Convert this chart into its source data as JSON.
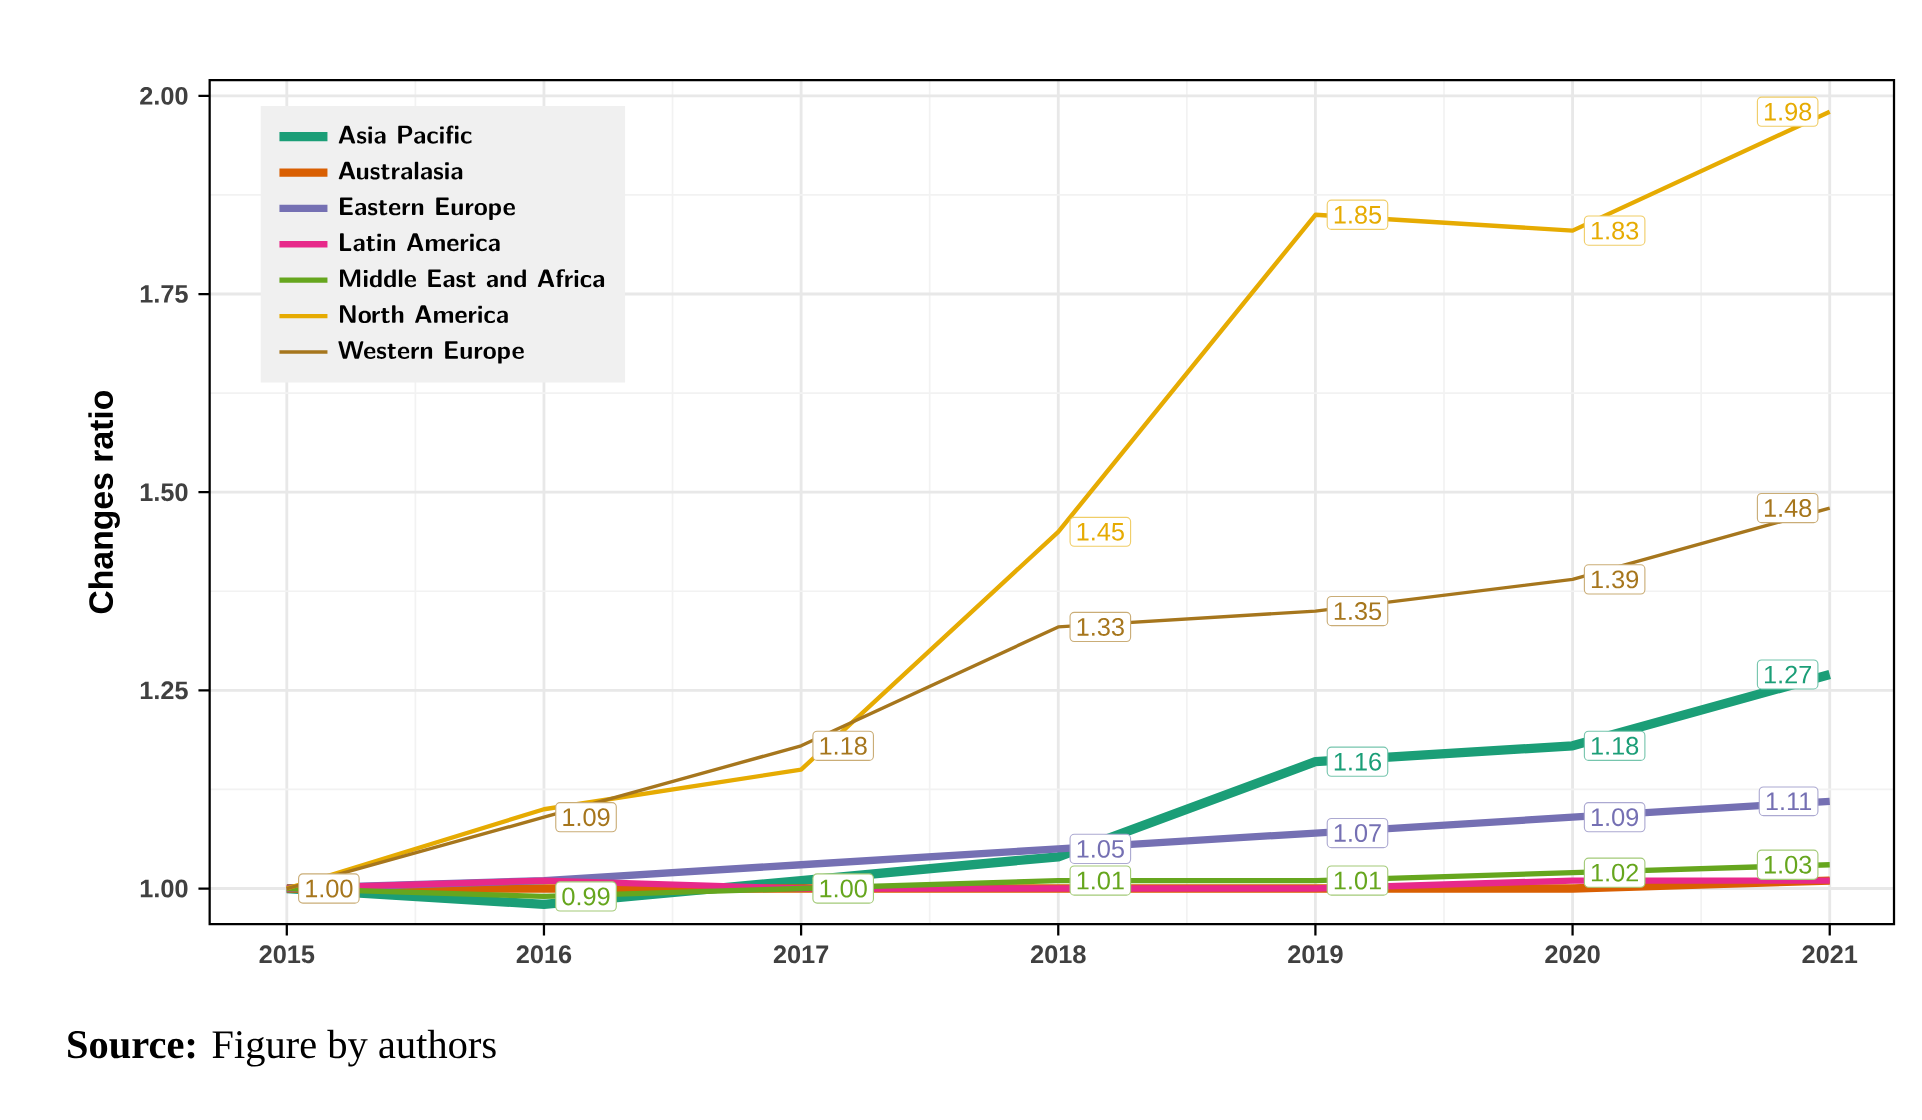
{
  "chart_data": {
    "type": "line",
    "ylabel": "Changes ratio",
    "x": [
      2015,
      2016,
      2017,
      2018,
      2019,
      2020,
      2021
    ],
    "xlim": [
      2014.7,
      2021.25
    ],
    "ylim": [
      0.955,
      2.02
    ],
    "xticks": [
      2015,
      2016,
      2017,
      2018,
      2019,
      2020,
      2021
    ],
    "yticks": [
      {
        "value": 1,
        "label": "1.00"
      },
      {
        "value": 1.25,
        "label": "1.25"
      },
      {
        "value": 1.5,
        "label": "1.50"
      },
      {
        "value": 1.75,
        "label": "1.75"
      },
      {
        "value": 2,
        "label": "2.00"
      }
    ],
    "grid": true,
    "legend": "top left",
    "marker": "none",
    "line_style": "solid",
    "series": [
      {
        "name": "Asia Pacific",
        "color": "#1b9e77",
        "values": [
          1.0,
          0.98,
          1.01,
          1.04,
          1.16,
          1.18,
          1.27
        ],
        "value_labels": [
          null,
          null,
          null,
          null,
          "1.16",
          "1.18",
          "1.27"
        ]
      },
      {
        "name": "Australasia",
        "color": "#d95f02",
        "values": [
          1.0,
          1.0,
          1.0,
          1.0,
          1.0,
          1.0,
          1.01
        ]
      },
      {
        "name": "Eastern Europe",
        "color": "#7570b3",
        "values": [
          1.0,
          1.01,
          1.03,
          1.05,
          1.07,
          1.09,
          1.11
        ],
        "value_labels": [
          null,
          null,
          null,
          "1.05",
          "1.07",
          "1.09",
          "1.11"
        ]
      },
      {
        "name": "Latin America",
        "color": "#e7298a",
        "values": [
          1.0,
          1.01,
          1.0,
          1.0,
          1.0,
          1.01,
          1.01
        ]
      },
      {
        "name": "Middle East and Africa",
        "color": "#66a61e",
        "values": [
          1.0,
          0.99,
          1.0,
          1.01,
          1.01,
          1.02,
          1.03
        ],
        "value_labels": [
          null,
          "0.99",
          "1.00",
          "1.01",
          "1.01",
          "1.02",
          "1.03"
        ]
      },
      {
        "name": "North America",
        "color": "#e6ab02",
        "values": [
          1.0,
          1.1,
          1.15,
          1.45,
          1.85,
          1.83,
          1.98
        ],
        "value_labels": [
          null,
          null,
          null,
          "1.45",
          "1.85",
          "1.83",
          "1.98"
        ]
      },
      {
        "name": "Western Europe",
        "color": "#a6761d",
        "values": [
          1.0,
          1.09,
          1.18,
          1.33,
          1.35,
          1.39,
          1.48
        ],
        "value_labels": [
          "1.00",
          "1.09",
          "1.18",
          "1.33",
          "1.35",
          "1.39",
          "1.48"
        ]
      }
    ],
    "annotations": [
      "**Source:** Figure by authors"
    ]
  }
}
